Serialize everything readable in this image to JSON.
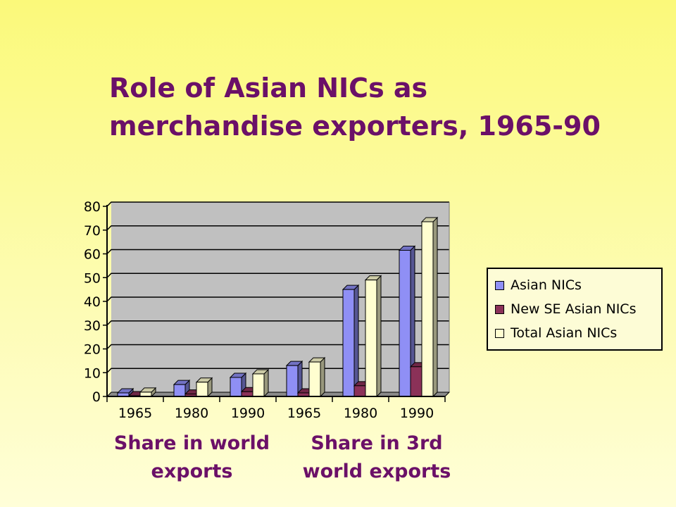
{
  "title": {
    "line1": "Role of Asian NICs as",
    "line2": "merchandise exporters, 1965-90"
  },
  "group_labels": {
    "left_line1": "Share in world",
    "left_line2": "exports",
    "right_line1": "Share in 3rd",
    "right_line2": "world exports"
  },
  "chart_data": {
    "type": "bar",
    "categories": [
      "1965",
      "1980",
      "1990",
      "1965",
      "1980",
      "1990"
    ],
    "series": [
      {
        "name": "Asian NICs",
        "color": "#8f8ff5",
        "values": [
          1.5,
          5,
          8,
          13,
          45,
          61.5
        ]
      },
      {
        "name": "New SE Asian NICs",
        "color": "#8b3158",
        "values": [
          0.3,
          1,
          2,
          1.5,
          4.5,
          12.5
        ]
      },
      {
        "name": "Total Asian NICs",
        "color": "#fffed0",
        "values": [
          1.8,
          6,
          9.5,
          14.5,
          49,
          73.5
        ]
      }
    ],
    "y_ticks": [
      "0",
      "10",
      "20",
      "30",
      "40",
      "50",
      "60",
      "70",
      "80"
    ],
    "ylim": [
      0,
      80
    ],
    "grid": true,
    "legend_position": "right",
    "title": "",
    "xlabel": "",
    "ylabel": ""
  }
}
